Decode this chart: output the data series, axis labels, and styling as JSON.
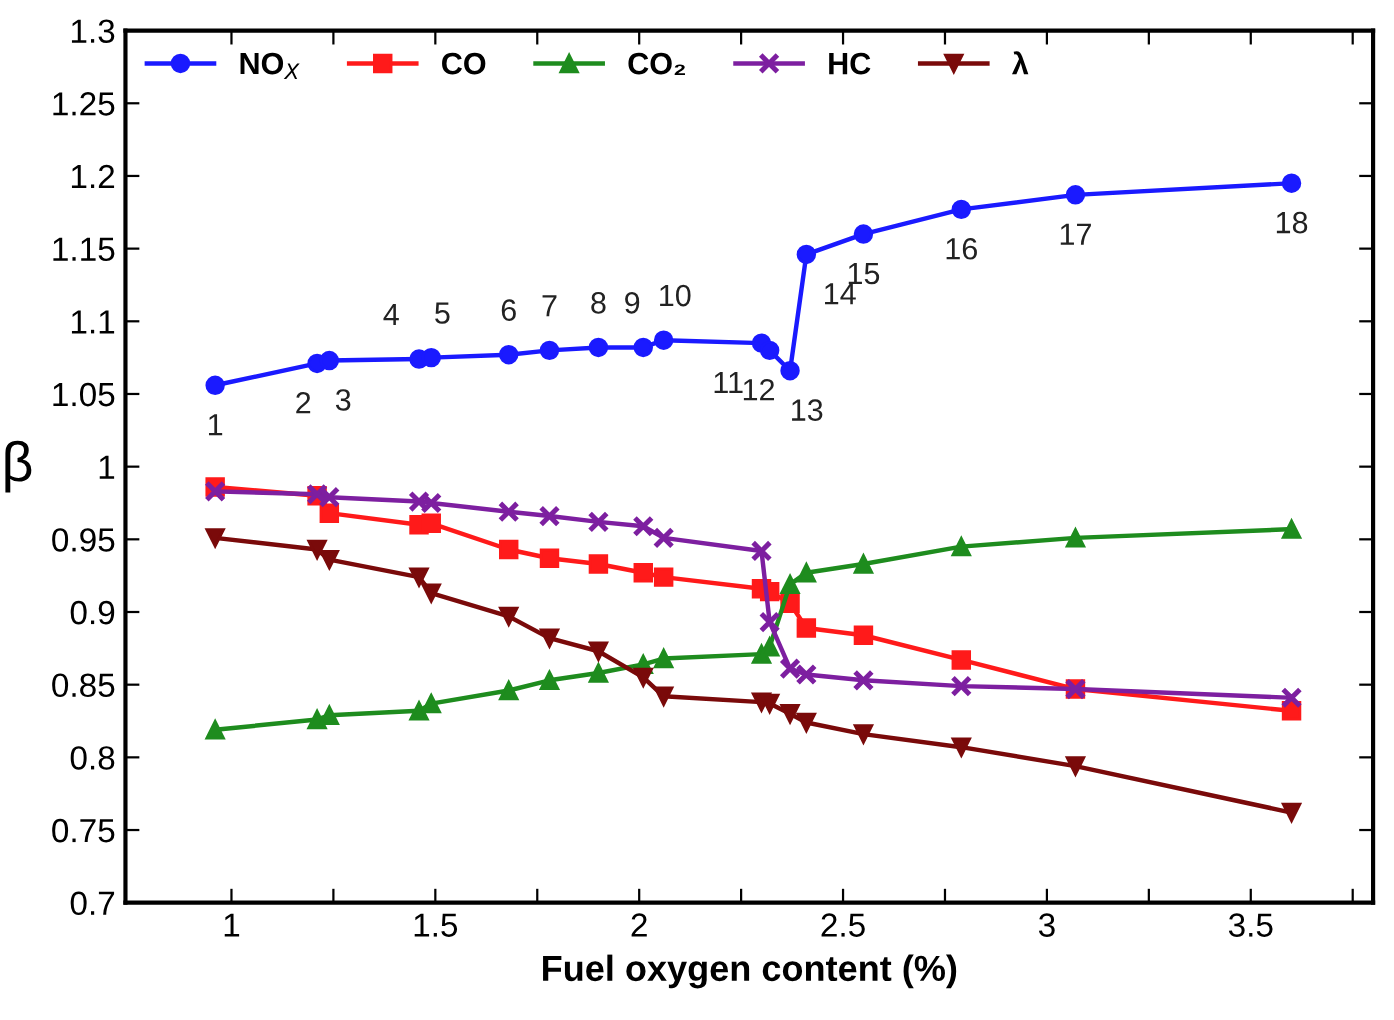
{
  "chart_data": {
    "type": "line",
    "xlabel": "Fuel oxygen content (%)",
    "ylabel": "β",
    "x": [
      0.96,
      1.21,
      1.24,
      1.46,
      1.49,
      1.68,
      1.78,
      1.9,
      2.01,
      2.06,
      2.3,
      2.32,
      2.37,
      2.41,
      2.55,
      2.79,
      3.07,
      3.6
    ],
    "series": [
      {
        "name": "NO$_{X}$",
        "color": "#1a1aff",
        "marker": "circle",
        "values": [
          1.056,
          1.071,
          1.073,
          1.074,
          1.075,
          1.077,
          1.08,
          1.082,
          1.082,
          1.087,
          1.085,
          1.08,
          1.066,
          1.146,
          1.16,
          1.177,
          1.187,
          1.195
        ]
      },
      {
        "name": "CO",
        "color": "#ff1a1a",
        "marker": "square",
        "values": [
          0.986,
          0.98,
          0.968,
          0.96,
          0.961,
          0.943,
          0.937,
          0.933,
          0.927,
          0.924,
          0.916,
          0.914,
          0.906,
          0.889,
          0.884,
          0.867,
          0.847,
          0.832
        ]
      },
      {
        "name": "CO₂",
        "color": "#1e8c1e",
        "marker": "triangle",
        "values": [
          0.819,
          0.826,
          0.829,
          0.832,
          0.837,
          0.846,
          0.853,
          0.858,
          0.864,
          0.868,
          0.871,
          0.876,
          0.919,
          0.927,
          0.933,
          0.945,
          0.951,
          0.957
        ]
      },
      {
        "name": "HC",
        "color": "#7d1fa0",
        "marker": "cross",
        "values": [
          0.983,
          0.981,
          0.979,
          0.976,
          0.975,
          0.969,
          0.966,
          0.962,
          0.959,
          0.951,
          0.942,
          0.893,
          0.861,
          0.857,
          0.853,
          0.849,
          0.847,
          0.841
        ]
      },
      {
        "name": "λ",
        "color": "#7a0a0a",
        "marker": "triangle_down",
        "values": [
          0.951,
          0.943,
          0.936,
          0.924,
          0.913,
          0.897,
          0.882,
          0.873,
          0.855,
          0.842,
          0.838,
          0.837,
          0.83,
          0.824,
          0.816,
          0.807,
          0.794,
          0.762
        ]
      }
    ],
    "xlim": [
      0.74,
      3.8
    ],
    "xticks": [
      1,
      {
        "value": 1.25,
        "label": null
      },
      1.5,
      {
        "value": 1.75,
        "label": null
      },
      2,
      {
        "value": 2.25,
        "label": null
      },
      2.5,
      {
        "value": 2.75,
        "label": null
      },
      3,
      {
        "value": 3.25,
        "label": null
      },
      3.5,
      {
        "value": 3.75,
        "label": null
      }
    ],
    "ylim": [
      0.7,
      1.3
    ],
    "yticks": [
      0.7,
      0.75,
      0.8,
      0.85,
      0.9,
      0.95,
      1,
      1.05,
      1.1,
      1.15,
      1.2,
      1.25,
      1.3
    ],
    "grid": false,
    "legend": "top left",
    "line_style": "solid",
    "annotations": [
      {
        "text": "1",
        "x": 0.96,
        "y": 1.056
      },
      {
        "text": "2",
        "x": 1.21,
        "y": 1.071
      },
      {
        "text": "3",
        "x": 1.24,
        "y": 1.073
      },
      {
        "text": "4",
        "x": 1.46,
        "y": 1.074
      },
      {
        "text": "5",
        "x": 1.49,
        "y": 1.075
      },
      {
        "text": "6",
        "x": 1.68,
        "y": 1.077
      },
      {
        "text": "7",
        "x": 1.78,
        "y": 1.08
      },
      {
        "text": "8",
        "x": 1.9,
        "y": 1.082
      },
      {
        "text": "9",
        "x": 2.01,
        "y": 1.082
      },
      {
        "text": "10",
        "x": 2.06,
        "y": 1.087
      },
      {
        "text": "11",
        "x": 2.3,
        "y": 1.085
      },
      {
        "text": "12",
        "x": 2.32,
        "y": 1.08
      },
      {
        "text": "13",
        "x": 2.37,
        "y": 1.066
      },
      {
        "text": "14",
        "x": 2.41,
        "y": 1.146
      },
      {
        "text": "15",
        "x": 2.55,
        "y": 1.16
      },
      {
        "text": "16",
        "x": 2.79,
        "y": 1.177
      },
      {
        "text": "17",
        "x": 3.07,
        "y": 1.187
      },
      {
        "text": "18",
        "x": 3.6,
        "y": 1.195
      }
    ]
  }
}
